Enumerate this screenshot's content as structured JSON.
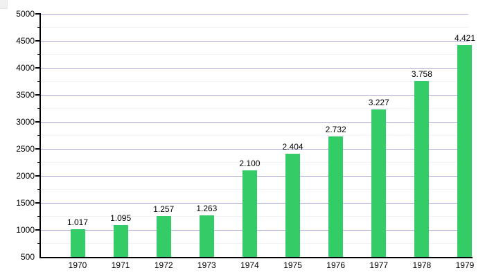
{
  "chart_data": {
    "type": "bar",
    "title": "",
    "xlabel": "",
    "ylabel": "",
    "categories": [
      "1970",
      "1971",
      "1972",
      "1973",
      "1974",
      "1975",
      "1976",
      "1977",
      "1978",
      "1979"
    ],
    "values": [
      1017,
      1095,
      1257,
      1263,
      2100,
      2404,
      2732,
      3227,
      3758,
      4421
    ],
    "value_labels": [
      "1.017",
      "1.095",
      "1.257",
      "1.263",
      "2.100",
      "2.404",
      "2.732",
      "3.227",
      "3.758",
      "4.421"
    ],
    "ylim": [
      500,
      5000
    ],
    "ytick_major": 500,
    "ytick_minor": 250,
    "y_tick_labels": [
      "500",
      "1000",
      "1500",
      "2000",
      "2500",
      "3000",
      "3500",
      "4000",
      "4500",
      "5000"
    ],
    "grid": true,
    "legend_position": "none",
    "colors": {
      "bar": "#33cc66",
      "major_grid": "#aeacd6",
      "minor_grid": "#f2f0f7",
      "axis": "#000000",
      "text": "#000000",
      "background": "#ffffff"
    }
  }
}
